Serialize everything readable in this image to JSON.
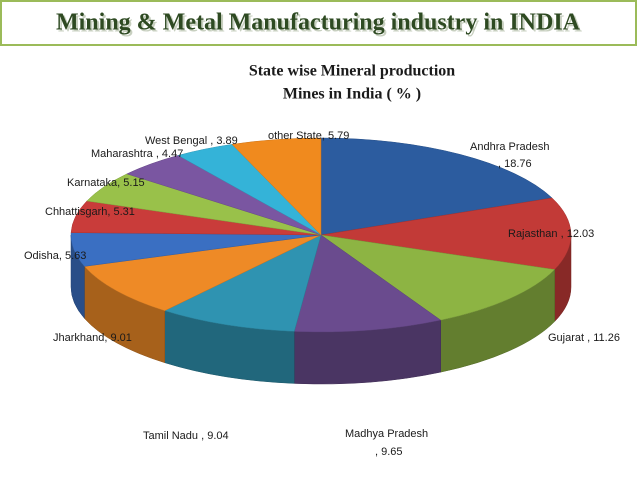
{
  "header": {
    "title": "Mining  &  Metal  Manufacturing industry in INDIA"
  },
  "chart_data": {
    "type": "pie",
    "title": "State wise Mineral production",
    "subtitle": "Mines in India ( %  )",
    "categories": [
      "Andhra Pradesh",
      "Rajasthan",
      "Gujarat",
      "Madhya Pradesh",
      "Tamil Nadu",
      "Jharkhand",
      "Odisha",
      "Chhattisgarh",
      "Karnataka",
      "Maharashtra",
      "West Bengal",
      "other State"
    ],
    "values": [
      18.76,
      12.03,
      11.26,
      9.65,
      9.04,
      9.01,
      5.63,
      5.31,
      5.15,
      4.47,
      3.89,
      5.79
    ],
    "value_labels": [
      ", 18.76",
      " , 12.03",
      " , 11.26",
      ", 9.65",
      " , 9.04",
      ", 9.01",
      ", 5.63",
      ", 5.31",
      ", 5.15",
      " , 4.47",
      " , 3.89",
      ", 5.79"
    ],
    "colors": [
      "#2c5c9f",
      "#c23a37",
      "#8db443",
      "#6a4b8e",
      "#2f93b1",
      "#ee8a26",
      "#3a6fc2",
      "#c93c3a",
      "#99c14a",
      "#7a56a1",
      "#34b3d8",
      "#f08a1e"
    ]
  }
}
